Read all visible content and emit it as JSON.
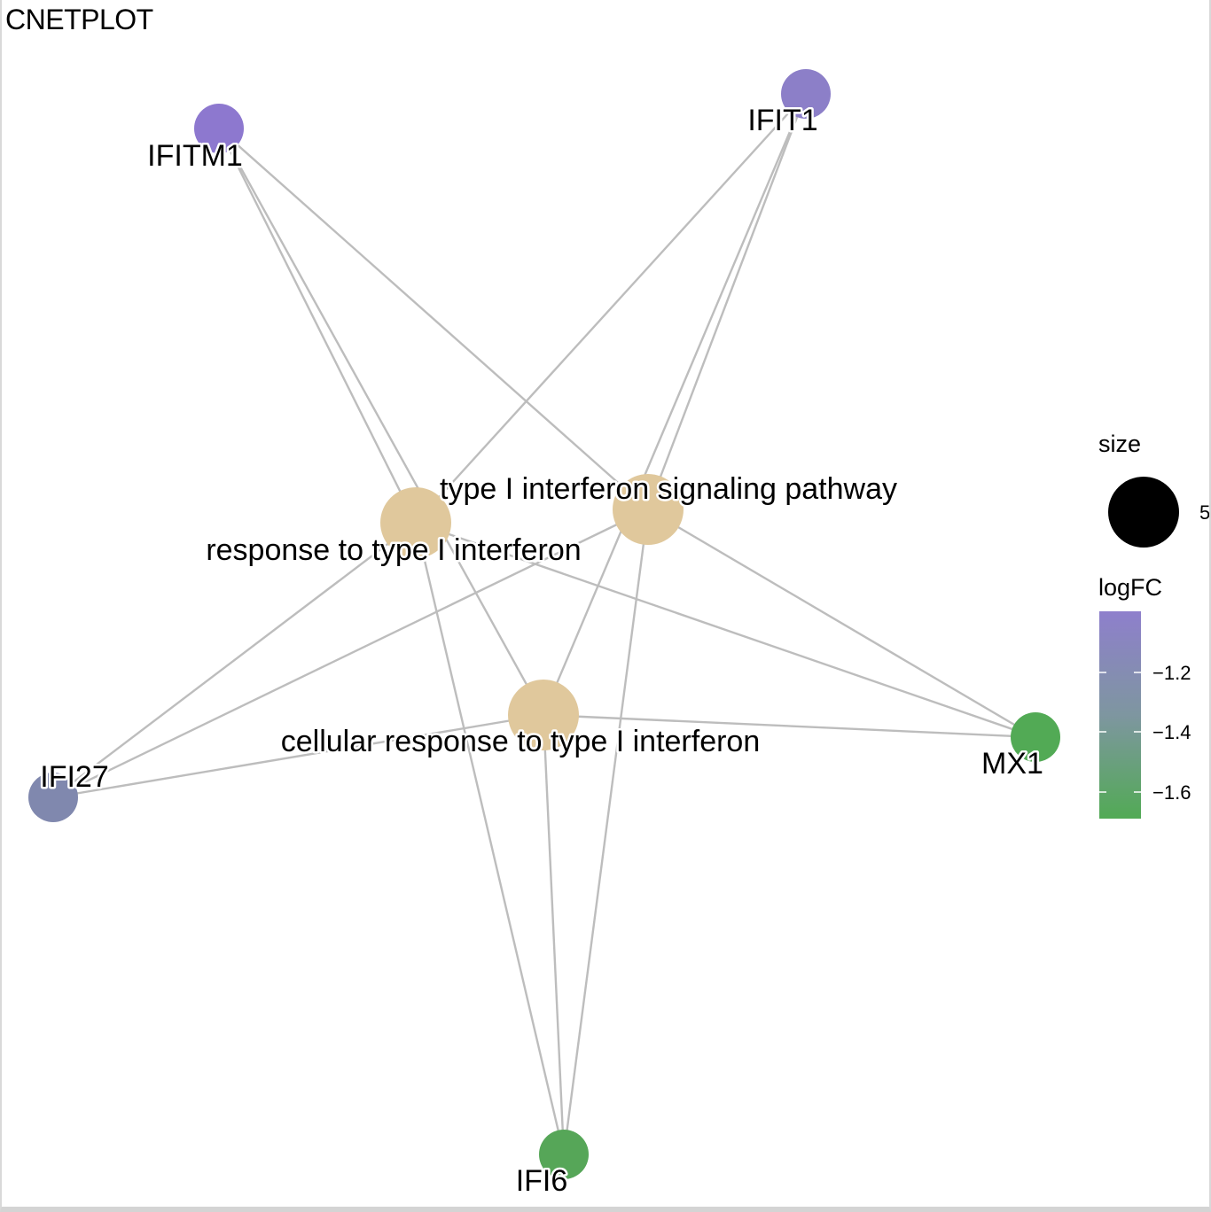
{
  "title": "CNETPLOT",
  "colors": {
    "category_node": "#e0c89c",
    "edge": "#bdbdbd",
    "logfc_high": "#8e7fcc",
    "logfc_mid": "#7e96a0",
    "logfc_low": "#52aa55"
  },
  "categories": [
    {
      "id": "resp",
      "label": "response to type I interferon"
    },
    {
      "id": "sig",
      "label": "type I interferon signaling pathway"
    },
    {
      "id": "cell",
      "label": "cellular response to type I interferon"
    }
  ],
  "genes": [
    {
      "id": "IFITM1",
      "label": "IFITM1",
      "color": "#8d78cf"
    },
    {
      "id": "IFIT1",
      "label": "IFIT1",
      "color": "#8c7fc8"
    },
    {
      "id": "IFI27",
      "label": "IFI27",
      "color": "#8088ae"
    },
    {
      "id": "MX1",
      "label": "MX1",
      "color": "#52aa55"
    },
    {
      "id": "IFI6",
      "label": "IFI6",
      "color": "#56a658"
    }
  ],
  "edges": [
    [
      "IFITM1",
      "resp"
    ],
    [
      "IFITM1",
      "sig"
    ],
    [
      "IFITM1",
      "cell"
    ],
    [
      "IFIT1",
      "resp"
    ],
    [
      "IFIT1",
      "sig"
    ],
    [
      "IFIT1",
      "cell"
    ],
    [
      "IFI27",
      "resp"
    ],
    [
      "IFI27",
      "sig"
    ],
    [
      "IFI27",
      "cell"
    ],
    [
      "MX1",
      "resp"
    ],
    [
      "MX1",
      "sig"
    ],
    [
      "MX1",
      "cell"
    ],
    [
      "IFI6",
      "resp"
    ],
    [
      "IFI6",
      "sig"
    ],
    [
      "IFI6",
      "cell"
    ]
  ],
  "legend": {
    "size_title": "size",
    "size_value": "5",
    "color_title": "logFC",
    "color_ticks": [
      "−1.2",
      "−1.4",
      "−1.6"
    ]
  }
}
